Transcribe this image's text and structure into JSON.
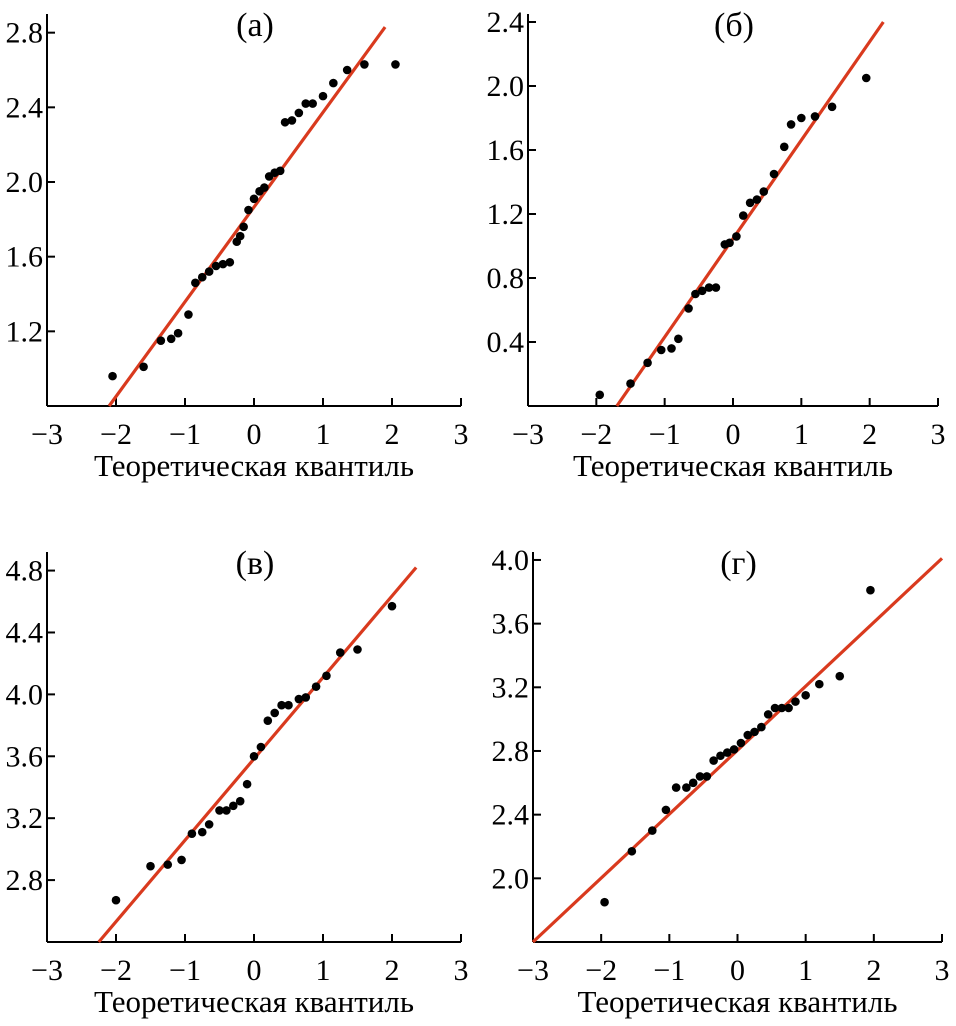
{
  "figure": {
    "xlabel_common": "Теоретическая квантиль"
  },
  "colors": {
    "fit_line": "#d93a1e",
    "points": "#000000",
    "axes": "#000000"
  },
  "chart_data": [
    {
      "type": "scatter",
      "title": "(а)",
      "xlabel": "Теоретическая квантиль",
      "ylabel": "",
      "xlim": [
        -3,
        3
      ],
      "ylim": [
        0.8,
        2.9
      ],
      "xticks": [
        -3,
        -2,
        -1,
        0,
        1,
        2,
        3
      ],
      "xtick_labels": [
        "−3",
        "−2",
        "−1",
        "0",
        "1",
        "2",
        "3"
      ],
      "yticks": [
        1.2,
        1.6,
        2.0,
        2.4,
        2.8
      ],
      "ytick_labels": [
        "1.2",
        "1.6",
        "2.0",
        "2.4",
        "2.8"
      ],
      "line": {
        "x": [
          -2.1,
          1.9
        ],
        "y": [
          0.8,
          2.83
        ]
      },
      "points": {
        "x": [
          -2.05,
          -1.6,
          -1.35,
          -1.2,
          -1.1,
          -0.95,
          -0.85,
          -0.75,
          -0.65,
          -0.55,
          -0.45,
          -0.35,
          -0.25,
          -0.2,
          -0.15,
          -0.08,
          0,
          0.08,
          0.15,
          0.22,
          0.3,
          0.38,
          0.45,
          0.55,
          0.65,
          0.75,
          0.85,
          1.0,
          1.15,
          1.35,
          1.6,
          2.05
        ],
        "y": [
          0.96,
          1.01,
          1.15,
          1.16,
          1.19,
          1.29,
          1.46,
          1.49,
          1.52,
          1.55,
          1.56,
          1.57,
          1.68,
          1.71,
          1.76,
          1.85,
          1.91,
          1.95,
          1.97,
          2.03,
          2.05,
          2.06,
          2.32,
          2.33,
          2.37,
          2.42,
          2.42,
          2.46,
          2.53,
          2.6,
          2.63,
          2.63
        ]
      }
    },
    {
      "type": "scatter",
      "title": "(б)",
      "xlabel": "Теоретическая квантиль",
      "ylabel": "",
      "xlim": [
        -3,
        3
      ],
      "ylim": [
        0.0,
        2.45
      ],
      "xticks": [
        -3,
        -2,
        -1,
        0,
        1,
        2,
        3
      ],
      "xtick_labels": [
        "−3",
        "−2",
        "−1",
        "0",
        "1",
        "2",
        "3"
      ],
      "yticks": [
        0.4,
        0.8,
        1.2,
        1.6,
        2.0,
        2.4
      ],
      "ytick_labels": [
        "0.4",
        "0.8",
        "1.2",
        "1.6",
        "2.0",
        "2.4"
      ],
      "line": {
        "x": [
          -1.7,
          2.2
        ],
        "y": [
          0.0,
          2.4
        ]
      },
      "points": {
        "x": [
          -1.95,
          -1.5,
          -1.25,
          -1.05,
          -0.9,
          -0.8,
          -0.65,
          -0.55,
          -0.45,
          -0.35,
          -0.25,
          -0.12,
          -0.05,
          0.05,
          0.15,
          0.25,
          0.35,
          0.45,
          0.6,
          0.75,
          0.85,
          1.0,
          1.2,
          1.45,
          1.95
        ],
        "y": [
          0.07,
          0.14,
          0.27,
          0.35,
          0.36,
          0.42,
          0.61,
          0.7,
          0.72,
          0.74,
          0.74,
          1.01,
          1.02,
          1.06,
          1.19,
          1.27,
          1.29,
          1.34,
          1.45,
          1.62,
          1.76,
          1.8,
          1.81,
          1.87,
          2.05
        ]
      }
    },
    {
      "type": "scatter",
      "title": "(в)",
      "xlabel": "Теоретическая квантиль",
      "ylabel": "",
      "xlim": [
        -3,
        3
      ],
      "ylim": [
        2.4,
        4.92
      ],
      "xticks": [
        -3,
        -2,
        -1,
        0,
        1,
        2,
        3
      ],
      "xtick_labels": [
        "−3",
        "−2",
        "−1",
        "0",
        "1",
        "2",
        "3"
      ],
      "yticks": [
        2.8,
        3.2,
        3.6,
        4.0,
        4.4,
        4.8
      ],
      "ytick_labels": [
        "2.8",
        "3.2",
        "3.6",
        "4.0",
        "4.4",
        "4.8"
      ],
      "line": {
        "x": [
          -2.25,
          2.35
        ],
        "y": [
          2.4,
          4.82
        ]
      },
      "points": {
        "x": [
          -2.0,
          -1.5,
          -1.25,
          -1.05,
          -0.9,
          -0.75,
          -0.65,
          -0.5,
          -0.4,
          -0.3,
          -0.2,
          -0.1,
          0,
          0.1,
          0.2,
          0.3,
          0.4,
          0.5,
          0.65,
          0.75,
          0.9,
          1.05,
          1.25,
          1.5,
          2.0
        ],
        "y": [
          2.67,
          2.89,
          2.9,
          2.93,
          3.1,
          3.11,
          3.16,
          3.25,
          3.25,
          3.28,
          3.31,
          3.42,
          3.6,
          3.66,
          3.83,
          3.88,
          3.93,
          3.93,
          3.97,
          3.98,
          4.05,
          4.12,
          4.27,
          4.29,
          4.57
        ]
      }
    },
    {
      "type": "scatter",
      "title": "(г)",
      "xlabel": "Теоретическая квантиль",
      "ylabel": "",
      "xlim": [
        -3,
        3
      ],
      "ylim": [
        1.6,
        4.05
      ],
      "xticks": [
        -3,
        -2,
        -1,
        0,
        1,
        2,
        3
      ],
      "xtick_labels": [
        "−3",
        "−2",
        "−1",
        "0",
        "1",
        "2",
        "3"
      ],
      "yticks": [
        2.0,
        2.4,
        2.8,
        3.2,
        3.6,
        4.0
      ],
      "ytick_labels": [
        "2.0",
        "2.4",
        "2.8",
        "3.2",
        "3.6",
        "4.0"
      ],
      "line": {
        "x": [
          -3.0,
          3.0
        ],
        "y": [
          1.6,
          4.01
        ]
      },
      "points": {
        "x": [
          -1.95,
          -1.55,
          -1.25,
          -1.05,
          -0.9,
          -0.75,
          -0.65,
          -0.55,
          -0.45,
          -0.35,
          -0.25,
          -0.15,
          -0.05,
          0.05,
          0.15,
          0.25,
          0.35,
          0.45,
          0.55,
          0.65,
          0.75,
          0.85,
          1.0,
          1.2,
          1.5,
          1.95
        ],
        "y": [
          1.85,
          2.17,
          2.3,
          2.43,
          2.57,
          2.57,
          2.6,
          2.64,
          2.64,
          2.74,
          2.77,
          2.79,
          2.81,
          2.85,
          2.9,
          2.92,
          2.95,
          3.03,
          3.07,
          3.07,
          3.07,
          3.11,
          3.15,
          3.22,
          3.27,
          3.81
        ]
      }
    }
  ]
}
